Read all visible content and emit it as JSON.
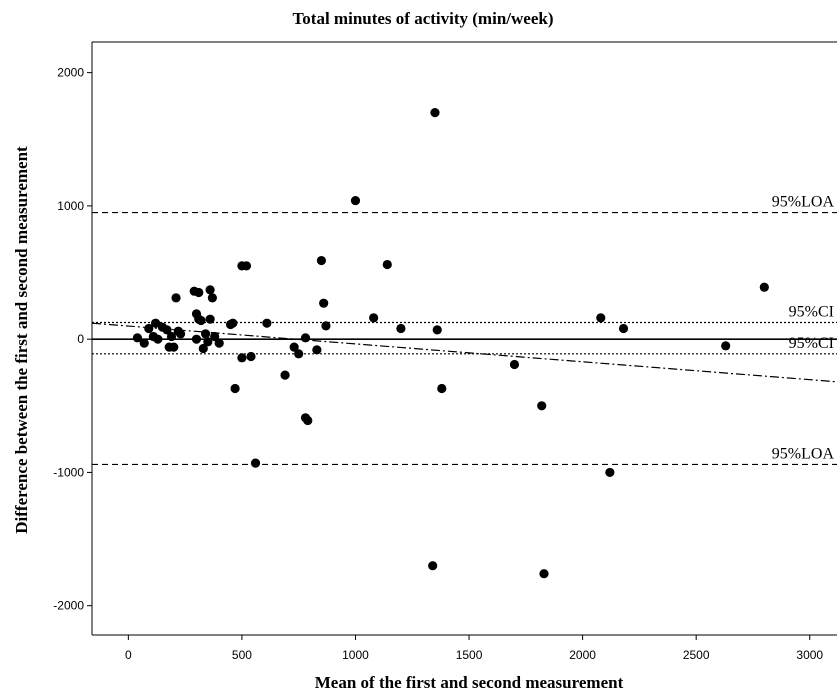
{
  "chart_data": {
    "type": "scatter",
    "title": "Total minutes of activity (min/week)",
    "xlabel": "Mean of the first and second measurement",
    "ylabel": "Difference between the first and second measurement",
    "xlim": [
      -160,
      3120
    ],
    "ylim": [
      -2220,
      2230
    ],
    "xticks": [
      0,
      500,
      1000,
      1500,
      2000,
      2500,
      3000
    ],
    "yticks": [
      -2000,
      -1000,
      0,
      1000,
      2000
    ],
    "grid": false,
    "legend": "none",
    "reference_lines": [
      {
        "label": "95%LOA",
        "y": 950,
        "style": "dashed"
      },
      {
        "label": "95%CI",
        "y": 125,
        "style": "dotted"
      },
      {
        "label": "",
        "y": 0,
        "style": "solid"
      },
      {
        "label": "95%CI",
        "y": -110,
        "style": "dotted"
      },
      {
        "label": "95%LOA",
        "y": -940,
        "style": "dashed"
      }
    ],
    "regression_line": {
      "style": "dash-dot",
      "x": [
        -160,
        3120
      ],
      "y": [
        120,
        -320
      ]
    },
    "series": [
      {
        "marker_color": "#000000",
        "points": [
          [
            40,
            10
          ],
          [
            70,
            -30
          ],
          [
            90,
            80
          ],
          [
            110,
            20
          ],
          [
            120,
            120
          ],
          [
            130,
            0
          ],
          [
            150,
            90
          ],
          [
            170,
            70
          ],
          [
            180,
            -60
          ],
          [
            190,
            20
          ],
          [
            200,
            -60
          ],
          [
            210,
            310
          ],
          [
            220,
            60
          ],
          [
            230,
            40
          ],
          [
            290,
            360
          ],
          [
            300,
            190
          ],
          [
            300,
            0
          ],
          [
            310,
            150
          ],
          [
            310,
            350
          ],
          [
            320,
            140
          ],
          [
            330,
            -70
          ],
          [
            340,
            40
          ],
          [
            350,
            -20
          ],
          [
            360,
            370
          ],
          [
            360,
            150
          ],
          [
            370,
            310
          ],
          [
            380,
            20
          ],
          [
            400,
            -30
          ],
          [
            450,
            110
          ],
          [
            460,
            120
          ],
          [
            470,
            -370
          ],
          [
            500,
            -140
          ],
          [
            500,
            550
          ],
          [
            520,
            550
          ],
          [
            540,
            -130
          ],
          [
            560,
            -930
          ],
          [
            610,
            120
          ],
          [
            690,
            -270
          ],
          [
            730,
            -60
          ],
          [
            750,
            -110
          ],
          [
            780,
            10
          ],
          [
            780,
            -590
          ],
          [
            790,
            -610
          ],
          [
            830,
            -80
          ],
          [
            850,
            590
          ],
          [
            860,
            270
          ],
          [
            870,
            100
          ],
          [
            1000,
            1040
          ],
          [
            1080,
            160
          ],
          [
            1140,
            560
          ],
          [
            1200,
            80
          ],
          [
            1340,
            -1700
          ],
          [
            1350,
            1700
          ],
          [
            1360,
            70
          ],
          [
            1380,
            -370
          ],
          [
            1700,
            -190
          ],
          [
            1820,
            -500
          ],
          [
            1830,
            -1760
          ],
          [
            2080,
            160
          ],
          [
            2120,
            -1000
          ],
          [
            2180,
            80
          ],
          [
            2630,
            -50
          ],
          [
            2800,
            390
          ]
        ]
      }
    ]
  }
}
